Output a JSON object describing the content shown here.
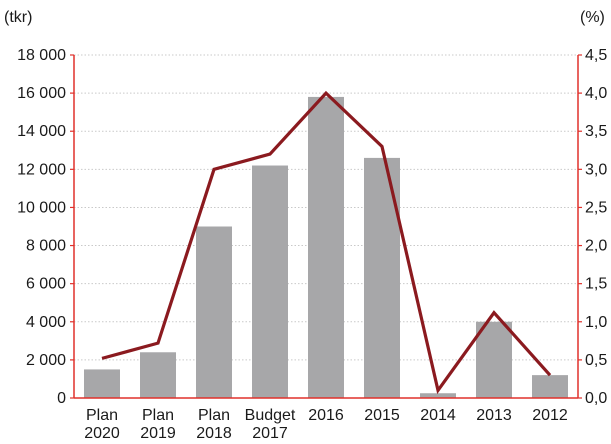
{
  "chart_data": {
    "type": "bar",
    "title": "",
    "categories": [
      [
        "Plan",
        "2020"
      ],
      [
        "Plan",
        "2019"
      ],
      [
        "Plan",
        "2018"
      ],
      [
        "Budget",
        "2017"
      ],
      [
        "2016"
      ],
      [
        "2015"
      ],
      [
        "2014"
      ],
      [
        "2013"
      ],
      [
        "2012"
      ]
    ],
    "series": [
      {
        "type": "bar",
        "axis": "left",
        "color": "#a7a7a9",
        "values": [
          1500,
          2400,
          9000,
          12200,
          15800,
          12600,
          250,
          4000,
          1200
        ]
      },
      {
        "type": "line",
        "axis": "right",
        "color": "#8b1a1f",
        "values": [
          0.52,
          0.72,
          3.0,
          3.2,
          4.0,
          3.3,
          0.1,
          1.12,
          0.3
        ]
      }
    ],
    "left_axis": {
      "unit_label": "(tkr)",
      "ylim": [
        0,
        18000
      ],
      "ticks": [
        0,
        2000,
        4000,
        6000,
        8000,
        10000,
        12000,
        14000,
        16000,
        18000
      ],
      "tick_labels": [
        "0",
        "2 000",
        "4 000",
        "6 000",
        "8 000",
        "10 000",
        "12 000",
        "14 000",
        "16 000",
        "18 000"
      ]
    },
    "right_axis": {
      "unit_label": "(%)",
      "ylim": [
        0,
        4.5
      ],
      "ticks": [
        0,
        0.5,
        1.0,
        1.5,
        2.0,
        2.5,
        3.0,
        3.5,
        4.0,
        4.5
      ],
      "tick_labels": [
        "0,0",
        "0,5",
        "1,0",
        "1,5",
        "2,0",
        "2,5",
        "3,0",
        "3,5",
        "4,0",
        "4,5"
      ]
    },
    "grid": true,
    "axis_color": "#e0312b"
  }
}
